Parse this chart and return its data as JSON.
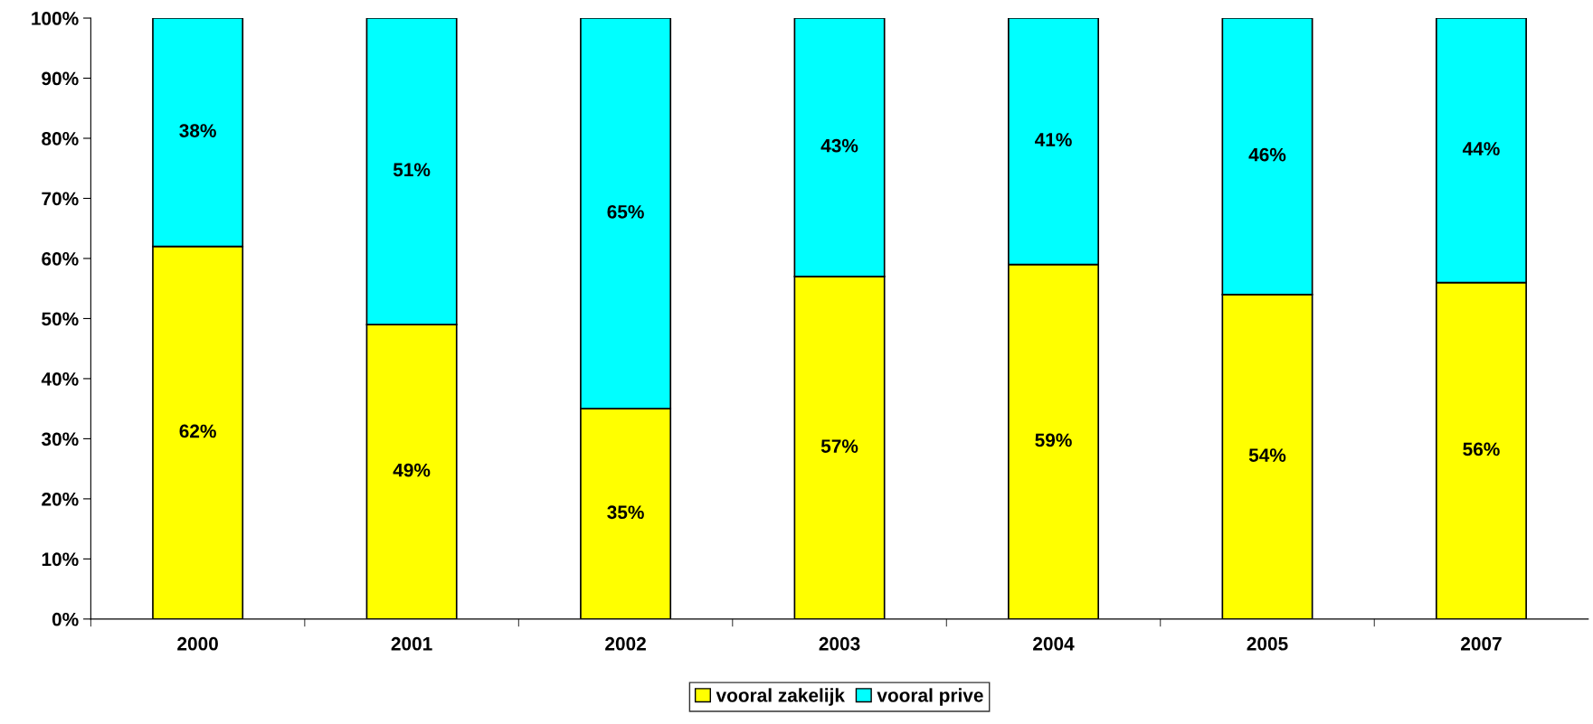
{
  "chart_data": {
    "type": "bar",
    "stacked": true,
    "categories": [
      "2000",
      "2001",
      "2002",
      "2003",
      "2004",
      "2005",
      "2007"
    ],
    "series": [
      {
        "name": "vooral zakelijk",
        "color": "#ffff00",
        "values": [
          62,
          49,
          35,
          57,
          59,
          54,
          56
        ],
        "value_labels": [
          "62%",
          "49%",
          "35%",
          "57%",
          "59%",
          "54%",
          "56%"
        ]
      },
      {
        "name": "vooral prive",
        "color": "#00ffff",
        "values": [
          38,
          51,
          65,
          43,
          41,
          46,
          44
        ],
        "value_labels": [
          "38%",
          "51%",
          "65%",
          "43%",
          "41%",
          "46%",
          "44%"
        ]
      }
    ],
    "ylim": [
      0,
      100
    ],
    "yticks": [
      {
        "value": 0,
        "label": "0%"
      },
      {
        "value": 10,
        "label": "10%"
      },
      {
        "value": 20,
        "label": "20%"
      },
      {
        "value": 30,
        "label": "30%"
      },
      {
        "value": 40,
        "label": "40%"
      },
      {
        "value": 50,
        "label": "50%"
      },
      {
        "value": 60,
        "label": "60%"
      },
      {
        "value": 70,
        "label": "70%"
      },
      {
        "value": 80,
        "label": "80%"
      },
      {
        "value": 90,
        "label": "90%"
      },
      {
        "value": 100,
        "label": "100%"
      }
    ],
    "grid": false,
    "legend": "bottom"
  }
}
